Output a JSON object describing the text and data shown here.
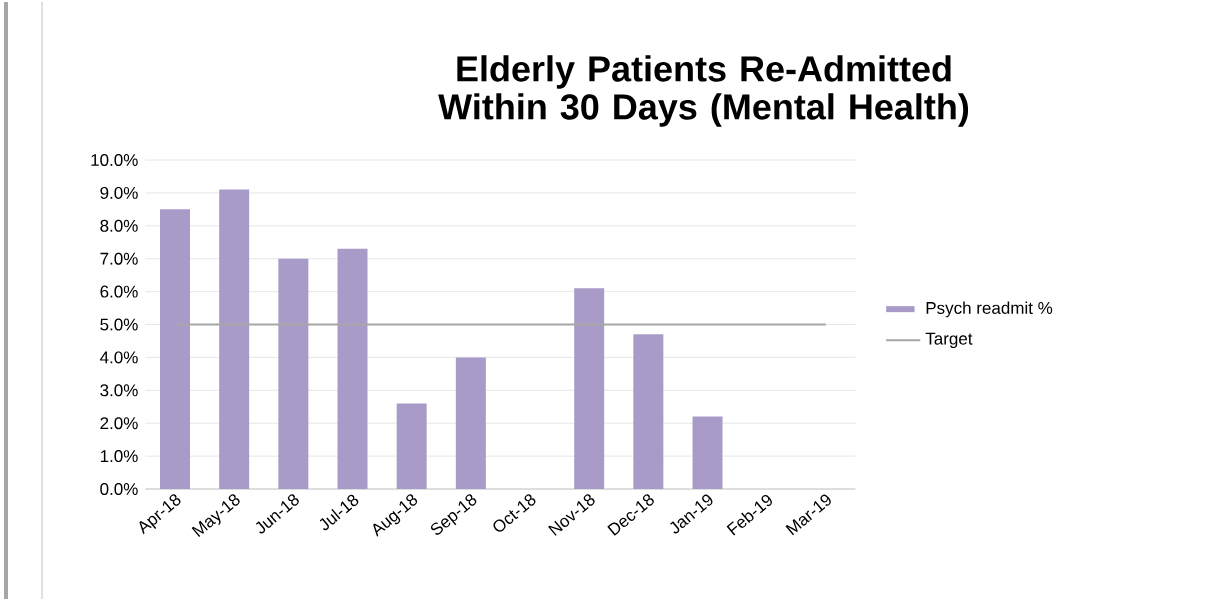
{
  "chart_data": {
    "type": "bar",
    "title": "Elderly Patients Re-Admitted Within 30  Days (Mental Health)",
    "categories": [
      "Apr-18",
      "May-18",
      "Jun-18",
      "Jul-18",
      "Aug-18",
      "Sep-18",
      "Oct-18",
      "Nov-18",
      "Dec-18",
      "Jan-19",
      "Feb-19",
      "Mar-19"
    ],
    "series": [
      {
        "name": "Psych readmit %",
        "color": "#a99bc8",
        "values": [
          8.5,
          9.1,
          7.0,
          7.3,
          2.6,
          4.0,
          null,
          6.1,
          4.7,
          2.2,
          null,
          null
        ]
      },
      {
        "name": "Target",
        "type": "line",
        "color": "#a6a6a6",
        "values": [
          5,
          5,
          5,
          5,
          5,
          5,
          5,
          5,
          5,
          5,
          5,
          5
        ]
      }
    ],
    "ylim": [
      0,
      10
    ],
    "yticks": [
      {
        "value": 0,
        "label": "0.0%"
      },
      {
        "value": 1,
        "label": "1.0%"
      },
      {
        "value": 2,
        "label": "2.0%"
      },
      {
        "value": 3,
        "label": "3.0%"
      },
      {
        "value": 4,
        "label": "4.0%"
      },
      {
        "value": 5,
        "label": "5.0%"
      },
      {
        "value": 6,
        "label": "6.0%"
      },
      {
        "value": 7,
        "label": "7.0%"
      },
      {
        "value": 8,
        "label": "8.0%"
      },
      {
        "value": 9,
        "label": "9.0%"
      },
      {
        "value": 10,
        "label": "10.0%"
      }
    ],
    "grid": "y",
    "legend": "right"
  }
}
